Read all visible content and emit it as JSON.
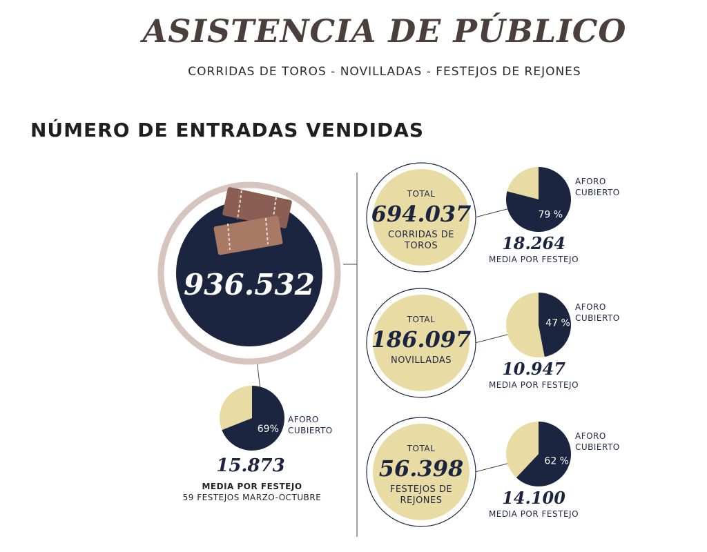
{
  "header": {
    "title": "ASISTENCIA DE PÚBLICO",
    "subtitle": "CORRIDAS DE TOROS - NOVILLADAS - FESTEJOS DE REJONES"
  },
  "section_title": "NÚMERO DE ENTRADAS VENDIDAS",
  "overall": {
    "total": "936.532",
    "aforo": {
      "value": 69,
      "label": "69%"
    },
    "aforo_caption": "AFORO CUBIERTO",
    "media": "15.873",
    "media_caption": "MEDIA POR FESTEJO",
    "note": "59 FESTEJOS MARZO-OCTUBRE"
  },
  "categories": [
    {
      "total_label": "TOTAL",
      "total": "694.037",
      "name": "CORRIDAS DE TOROS",
      "aforo": {
        "value": 79,
        "label": "79 %"
      },
      "aforo_caption": "AFORO CUBIERTO",
      "media": "18.264",
      "media_caption": "MEDIA POR FESTEJO"
    },
    {
      "total_label": "TOTAL",
      "total": "186.097",
      "name": "NOVILLADAS",
      "aforo": {
        "value": 47,
        "label": "47 %"
      },
      "aforo_caption": "AFORO CUBIERTO",
      "media": "10.947",
      "media_caption": "MEDIA POR FESTEJO"
    },
    {
      "total_label": "TOTAL",
      "total": "56.398",
      "name": "FESTEJOS DE REJONES",
      "aforo": {
        "value": 62,
        "label": "62 %"
      },
      "aforo_caption": "AFORO CUBIERTO",
      "media": "14.100",
      "media_caption": "MEDIA POR FESTEJO"
    }
  ]
}
